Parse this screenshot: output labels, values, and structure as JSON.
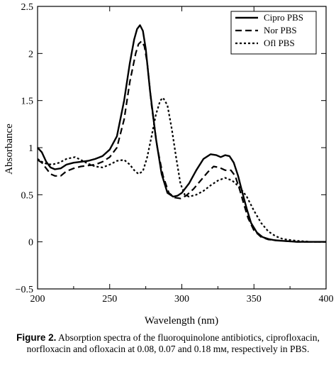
{
  "chart_data": {
    "type": "line",
    "xlabel": "Wavelength (nm)",
    "ylabel": "Absorbance",
    "xlim": [
      200,
      400
    ],
    "ylim": [
      -0.5,
      2.5
    ],
    "xticks": [
      "200",
      "250",
      "300",
      "350",
      "400"
    ],
    "yticks": [
      "−0.5",
      "0",
      "0.5",
      "1",
      "1.5",
      "2",
      "2.5"
    ],
    "legend_position": "top-right",
    "grid": false,
    "series": [
      {
        "name": "Cipro PBS",
        "style": "solid",
        "x": [
          200,
          203,
          206,
          209,
          212,
          216,
          220,
          225,
          230,
          235,
          240,
          245,
          250,
          255,
          260,
          264,
          267,
          269,
          271,
          273,
          275,
          278,
          282,
          286,
          290,
          294,
          297,
          300,
          305,
          310,
          315,
          320,
          324,
          327,
          330,
          333,
          336,
          339,
          342,
          345,
          348,
          352,
          356,
          360,
          365,
          370,
          380,
          390,
          400
        ],
        "y": [
          1.0,
          0.95,
          0.85,
          0.79,
          0.77,
          0.78,
          0.82,
          0.84,
          0.85,
          0.86,
          0.88,
          0.91,
          0.98,
          1.12,
          1.5,
          1.9,
          2.15,
          2.26,
          2.3,
          2.24,
          2.05,
          1.6,
          1.1,
          0.72,
          0.52,
          0.48,
          0.49,
          0.52,
          0.62,
          0.76,
          0.88,
          0.93,
          0.92,
          0.9,
          0.92,
          0.91,
          0.84,
          0.7,
          0.52,
          0.35,
          0.2,
          0.1,
          0.05,
          0.03,
          0.015,
          0.01,
          0.0,
          0.0,
          0.0
        ]
      },
      {
        "name": "Nor PBS",
        "style": "dashed",
        "x": [
          200,
          203,
          206,
          209,
          212,
          216,
          220,
          225,
          230,
          235,
          240,
          245,
          250,
          255,
          260,
          264,
          268,
          270,
          272,
          274,
          276,
          279,
          283,
          287,
          291,
          295,
          299,
          303,
          308,
          313,
          318,
          322,
          326,
          330,
          334,
          337,
          340,
          343,
          346,
          350,
          355,
          360,
          370,
          380,
          390,
          400
        ],
        "y": [
          0.87,
          0.84,
          0.78,
          0.72,
          0.7,
          0.7,
          0.75,
          0.78,
          0.8,
          0.81,
          0.82,
          0.85,
          0.9,
          1.0,
          1.3,
          1.7,
          2.0,
          2.1,
          2.13,
          2.08,
          1.9,
          1.45,
          1.0,
          0.7,
          0.52,
          0.47,
          0.46,
          0.49,
          0.56,
          0.65,
          0.74,
          0.8,
          0.79,
          0.76,
          0.76,
          0.7,
          0.56,
          0.4,
          0.25,
          0.12,
          0.05,
          0.025,
          0.01,
          0.0,
          0.0,
          0.0
        ]
      },
      {
        "name": "Ofl PBS",
        "style": "dotted",
        "x": [
          200,
          203,
          206,
          210,
          215,
          220,
          226,
          230,
          235,
          240,
          245,
          250,
          255,
          260,
          264,
          267,
          270,
          273,
          276,
          279,
          282,
          285,
          287,
          290,
          293,
          296,
          299,
          302,
          305,
          310,
          315,
          320,
          325,
          330,
          335,
          340,
          345,
          350,
          355,
          360,
          365,
          370,
          380,
          390,
          400
        ],
        "y": [
          0.88,
          0.85,
          0.83,
          0.82,
          0.84,
          0.88,
          0.9,
          0.87,
          0.83,
          0.8,
          0.79,
          0.82,
          0.86,
          0.87,
          0.82,
          0.76,
          0.72,
          0.75,
          0.9,
          1.12,
          1.35,
          1.5,
          1.53,
          1.45,
          1.2,
          0.9,
          0.62,
          0.5,
          0.48,
          0.5,
          0.54,
          0.6,
          0.65,
          0.68,
          0.65,
          0.58,
          0.48,
          0.33,
          0.2,
          0.11,
          0.06,
          0.03,
          0.01,
          0.0,
          0.0
        ]
      }
    ]
  },
  "caption": {
    "label": "Figure 2.",
    "text": "Absorption spectra of the fluoroquinolone antibiotics, ciprofloxacin, norfloxacin and ofloxacin at 0.08, 0.07 and 0.18 mм, respectively in PBS."
  }
}
